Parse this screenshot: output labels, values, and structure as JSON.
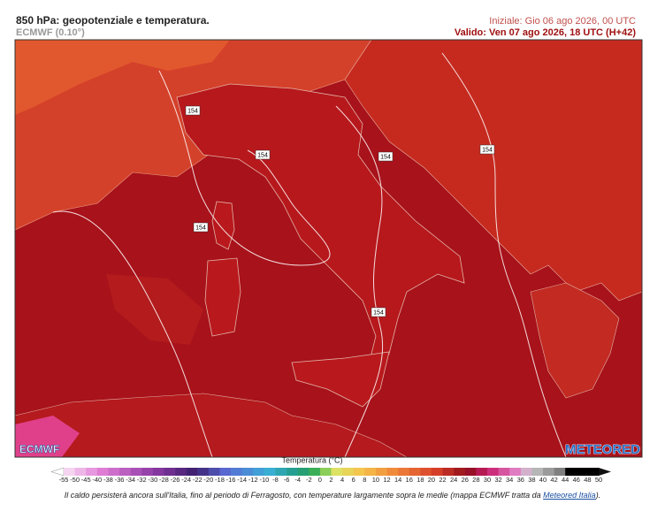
{
  "header": {
    "title": "850 hPa: geopotenziale e temperatura.",
    "model": "ECMWF (0.10°)",
    "init": "Iniziale: Gio 06 ago 2026, 00 UTC",
    "valid": "Valido: Ven 07 ago 2026, 18 UTC (H+42)"
  },
  "map": {
    "contour_labels": [
      "154",
      "154",
      "154",
      "154",
      "154",
      "154"
    ],
    "logo_left": "ECMWF",
    "logo_right": "METEORED"
  },
  "legend": {
    "title": "Temperatura (°C)",
    "ticks": [
      -55,
      -50,
      -45,
      -40,
      -38,
      -36,
      -34,
      -32,
      -30,
      -28,
      -26,
      -24,
      -22,
      -20,
      -18,
      -16,
      -14,
      -12,
      -10,
      -8,
      -6,
      -4,
      -2,
      0,
      2,
      4,
      6,
      8,
      10,
      12,
      14,
      16,
      18,
      20,
      22,
      24,
      26,
      28,
      30,
      32,
      34,
      36,
      38,
      40,
      42,
      44,
      46,
      48,
      50
    ]
  },
  "caption": {
    "text": "Il caldo persisterà ancora sull'Italia, fino al periodo di Ferragosto, con temperature largamente sopra le medie (mappa ECMWF tratta da",
    "link": "Meteored Italia",
    "end": ")."
  }
}
